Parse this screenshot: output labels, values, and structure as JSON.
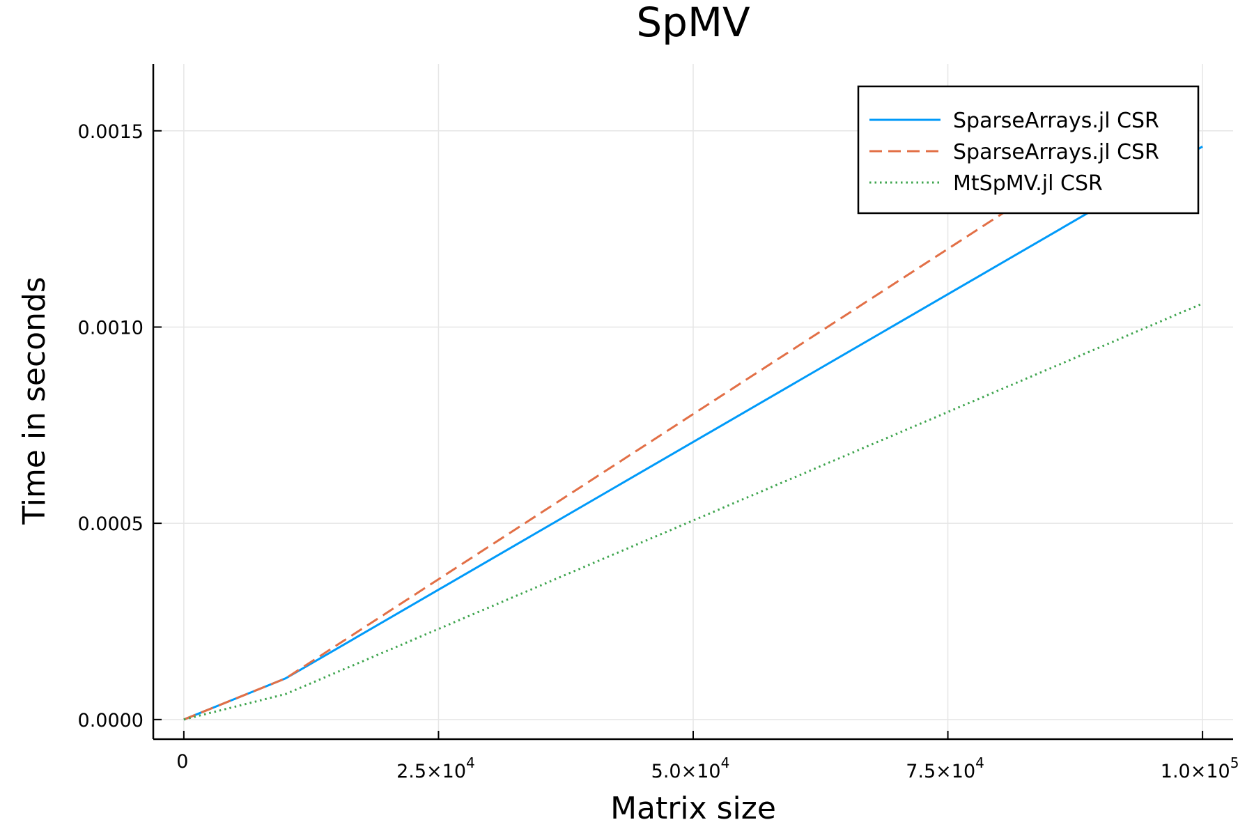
{
  "chart_data": {
    "type": "line",
    "title": "SpMV",
    "xlabel": "Matrix size",
    "ylabel": "Time in seconds",
    "xlim": [
      -3000,
      103000
    ],
    "ylim": [
      -5e-05,
      0.00167
    ],
    "xticks": [
      {
        "value": 0,
        "base": "0",
        "exp": ""
      },
      {
        "value": 25000,
        "base": "2.5×10",
        "exp": "4"
      },
      {
        "value": 50000,
        "base": "5.0×10",
        "exp": "4"
      },
      {
        "value": 75000,
        "base": "7.5×10",
        "exp": "4"
      },
      {
        "value": 100000,
        "base": "1.0×10",
        "exp": "5"
      }
    ],
    "yticks": [
      {
        "value": 0.0,
        "label": "0.0000"
      },
      {
        "value": 0.0005,
        "label": "0.0005"
      },
      {
        "value": 0.001,
        "label": "0.0010"
      },
      {
        "value": 0.0015,
        "label": "0.0015"
      }
    ],
    "grid": true,
    "legend_position": "top-right",
    "series": [
      {
        "name": "SparseArrays.jl CSR",
        "color": "#009af9",
        "style": "solid",
        "x": [
          0,
          10000,
          100000
        ],
        "y": [
          0.0,
          0.000105,
          0.00146
        ]
      },
      {
        "name": "SparseArrays.jl CSR",
        "color": "#e26f46",
        "style": "dashed",
        "x": [
          0,
          10000,
          100000
        ],
        "y": [
          0.0,
          0.000105,
          0.00162
        ]
      },
      {
        "name": "MtSpMV.jl CSR",
        "color": "#3da44d",
        "style": "dotted",
        "x": [
          0,
          10000,
          100000
        ],
        "y": [
          0.0,
          6.5e-05,
          0.00106
        ]
      }
    ]
  }
}
